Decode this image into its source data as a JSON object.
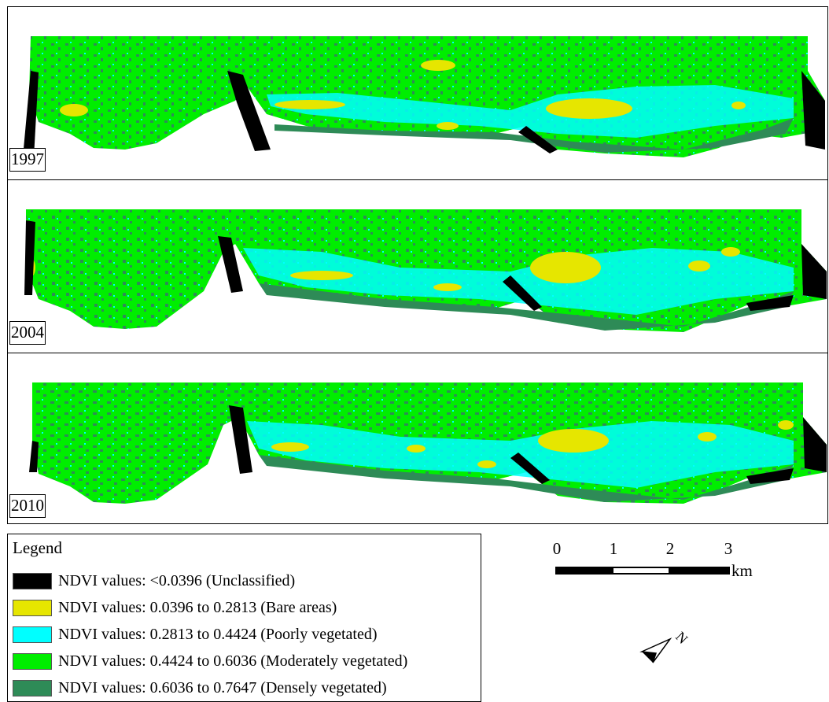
{
  "panels": [
    {
      "year": "1997"
    },
    {
      "year": "2004"
    },
    {
      "year": "2010"
    }
  ],
  "legend": {
    "title": "Legend",
    "items": [
      {
        "label": "NDVI values: <0.0396 (Unclassified)",
        "color": "#000000"
      },
      {
        "label": "NDVI values: 0.0396 to 0.2813 (Bare areas)",
        "color": "#e6e600"
      },
      {
        "label": "NDVI values: 0.2813 to 0.4424 (Poorly vegetated)",
        "color": "#00ffff"
      },
      {
        "label": "NDVI values: 0.4424 to 0.6036 (Moderately vegetated)",
        "color": "#00ee00"
      },
      {
        "label": "NDVI values: 0.6036 to 0.7647 (Densely vegetated)",
        "color": "#2e8b57"
      }
    ]
  },
  "scale": {
    "ticks": [
      "0",
      "1",
      "2",
      "3"
    ],
    "unit": "km"
  },
  "north_arrow": {
    "label": "N",
    "icon": "north-arrow-icon"
  }
}
